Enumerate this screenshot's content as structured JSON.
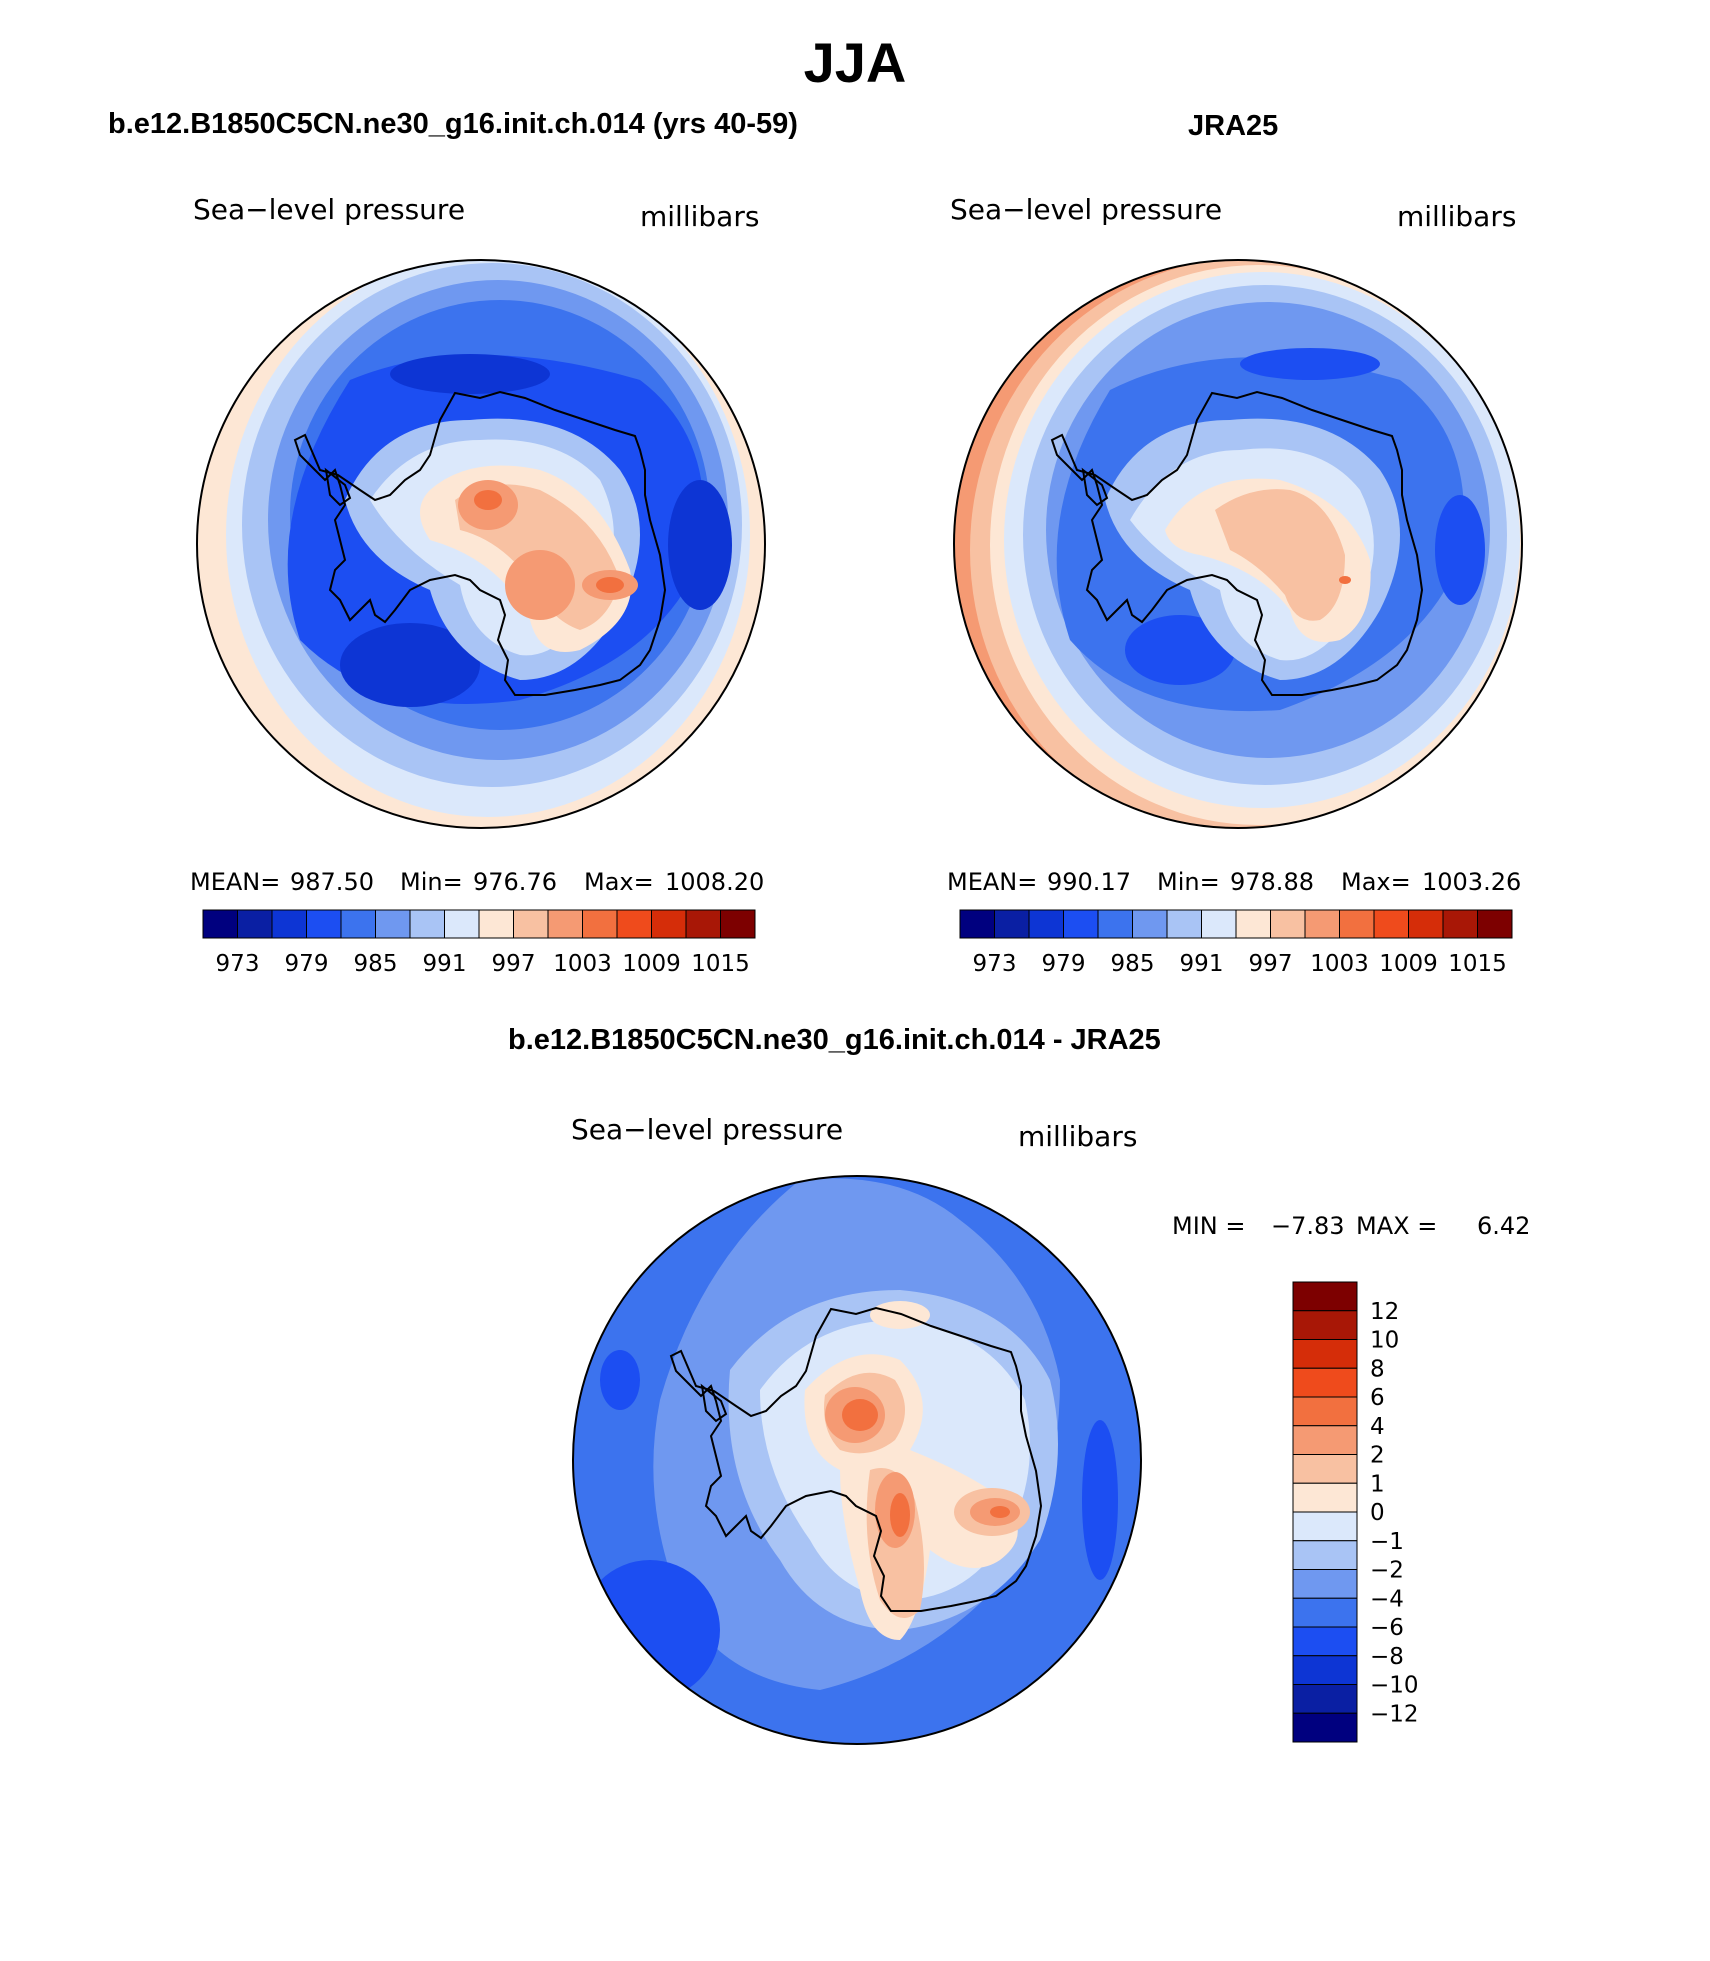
{
  "figure": {
    "season": "JJA",
    "colors": {
      "scale": [
        "#00007f",
        "#0a1fa3",
        "#0d35d4",
        "#1c4ef2",
        "#3c73ee",
        "#6f98f0",
        "#a9c4f5",
        "#dbe8fb",
        "#fde7d5",
        "#f8c1a2",
        "#f59a73",
        "#f2703f",
        "#ef4b1c",
        "#d52d09",
        "#a81706",
        "#7d0000"
      ],
      "ocean_light": "#f3c6aa",
      "coast": "#000000"
    }
  },
  "chart_data": [
    {
      "type": "heatmap",
      "title": "b.e12.B1850C5CN.ne30_g16.init.ch.014 (yrs 40-59)",
      "left_label": "Sea−level pressure",
      "right_label": "millibars",
      "mean_label": "MEAN=",
      "mean": "987.50",
      "min_label": "Min=",
      "min": "976.76",
      "max_label": "Max=",
      "max": "1008.20",
      "colorbar_ticks": [
        "973",
        "979",
        "985",
        "991",
        "997",
        "1003",
        "1009",
        "1015"
      ],
      "units": "millibars"
    },
    {
      "type": "heatmap",
      "title": "JRA25",
      "left_label": "Sea−level pressure",
      "right_label": "millibars",
      "mean_label": "MEAN=",
      "mean": "990.17",
      "min_label": "Min=",
      "min": "978.88",
      "max_label": "Max=",
      "max": "1003.26",
      "colorbar_ticks": [
        "973",
        "979",
        "985",
        "991",
        "997",
        "1003",
        "1009",
        "1015"
      ],
      "units": "millibars"
    },
    {
      "type": "heatmap",
      "title": "b.e12.B1850C5CN.ne30_g16.init.ch.014 - JRA25",
      "left_label": "Sea−level pressure",
      "right_label": "millibars",
      "min_label": "MIN =",
      "min": "−7.83",
      "max_label": "MAX =",
      "max": "6.42",
      "colorbar_ticks": [
        "12",
        "10",
        "8",
        "6",
        "4",
        "2",
        "1",
        "0",
        "−1",
        "−2",
        "−4",
        "−6",
        "−8",
        "−10",
        "−12"
      ],
      "units": "millibars"
    }
  ]
}
